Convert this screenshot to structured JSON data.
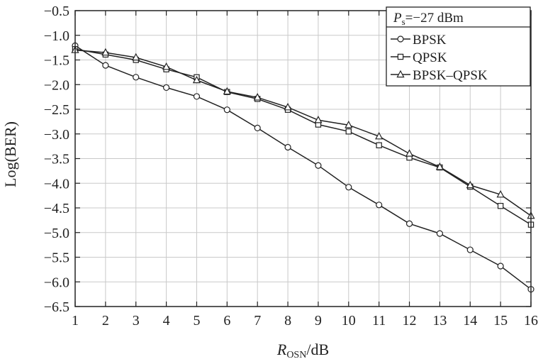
{
  "chart_data": {
    "type": "line",
    "title_prefix": "P",
    "title_sub": "s",
    "title_value": "=−27 dBm",
    "xlabel_main": "R",
    "xlabel_sub": "OSN",
    "xlabel_unit": "/dB",
    "ylabel": "Log(BER)",
    "xlim": [
      1,
      16
    ],
    "ylim": [
      -6.5,
      -0.5
    ],
    "x": [
      1,
      2,
      3,
      4,
      5,
      6,
      7,
      8,
      9,
      10,
      11,
      12,
      13,
      14,
      15,
      16
    ],
    "xticks": [
      "1",
      "2",
      "3",
      "4",
      "5",
      "6",
      "7",
      "8",
      "9",
      "10",
      "11",
      "12",
      "13",
      "14",
      "15",
      "16"
    ],
    "yticks": [
      -0.5,
      -1.0,
      -1.5,
      -2.0,
      -2.5,
      -3.0,
      -3.5,
      -4.0,
      -4.5,
      -5.0,
      -5.5,
      -6.0,
      -6.5
    ],
    "ytick_labels": [
      "−0.5",
      "−1.0",
      "−1.5",
      "−2.0",
      "−2.5",
      "−3.0",
      "−3.5",
      "−4.0",
      "−4.5",
      "−5.0",
      "−5.5",
      "−6.0",
      "−6.5"
    ],
    "grid": true,
    "legend_position": "top-right",
    "series": [
      {
        "name": "BPSK",
        "marker": "circle",
        "values": [
          -1.21,
          -1.61,
          -1.85,
          -2.06,
          -2.24,
          -2.51,
          -2.88,
          -3.27,
          -3.64,
          -4.08,
          -4.44,
          -4.82,
          -5.02,
          -5.35,
          -5.68,
          -6.15
        ]
      },
      {
        "name": "QPSK",
        "marker": "square",
        "values": [
          -1.28,
          -1.39,
          -1.5,
          -1.69,
          -1.85,
          -2.15,
          -2.29,
          -2.51,
          -2.81,
          -2.95,
          -3.23,
          -3.48,
          -3.68,
          -4.07,
          -4.46,
          -4.84
        ]
      },
      {
        "name": "BPSK–QPSK",
        "marker": "triangle",
        "values": [
          -1.3,
          -1.35,
          -1.45,
          -1.64,
          -1.91,
          -2.14,
          -2.26,
          -2.46,
          -2.72,
          -2.82,
          -3.05,
          -3.4,
          -3.67,
          -4.04,
          -4.23,
          -4.66
        ]
      }
    ]
  }
}
